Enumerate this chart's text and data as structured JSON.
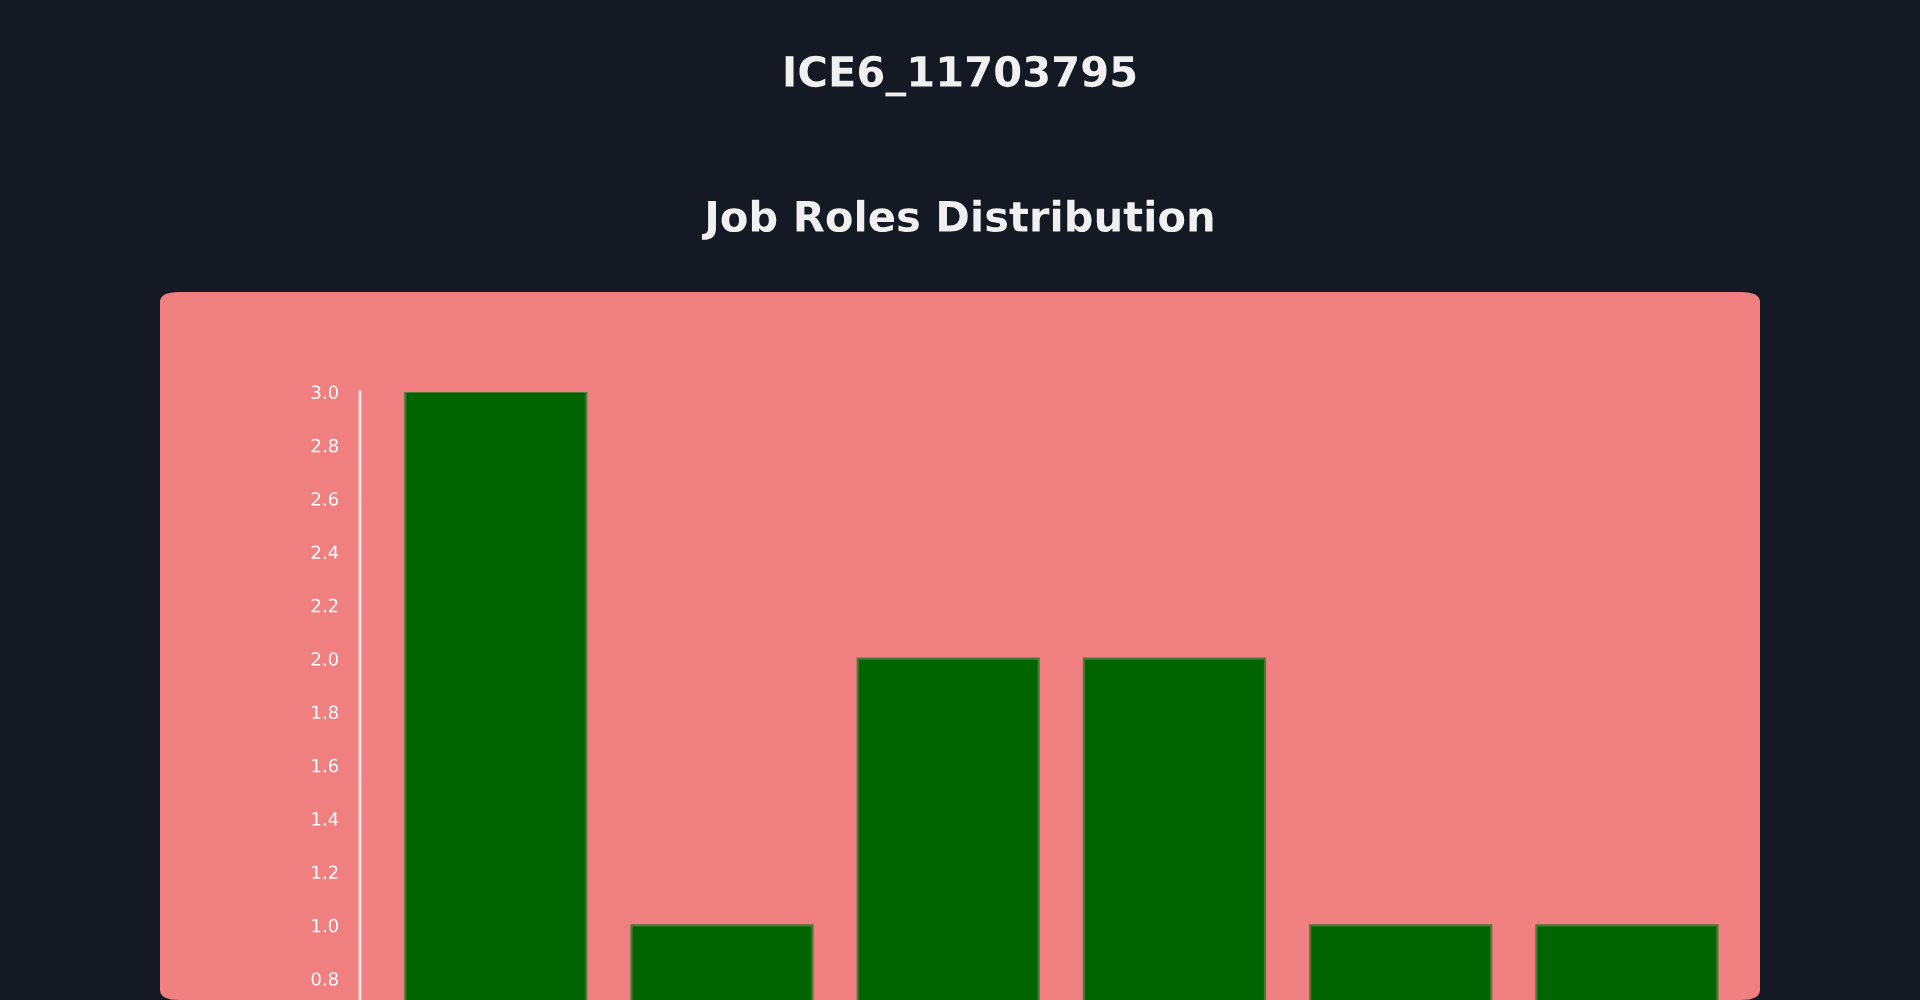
{
  "chart_data": {
    "type": "bar",
    "title": "ICE6_11703795",
    "subtitle": "Job Roles Distribution",
    "categories": [
      null,
      null,
      null,
      null,
      null,
      null
    ],
    "values": [
      3,
      1,
      2,
      2,
      1,
      1
    ],
    "color": "#006400",
    "ylim": [
      0.72,
      3.0
    ],
    "yticks": [
      {
        "value": 0.8,
        "label": "0.8"
      },
      {
        "value": 1.0,
        "label": "1.0"
      },
      {
        "value": 1.2,
        "label": "1.2"
      },
      {
        "value": 1.4,
        "label": "1.4"
      },
      {
        "value": 1.6,
        "label": "1.6"
      },
      {
        "value": 1.8,
        "label": "1.8"
      },
      {
        "value": 2.0,
        "label": "2.0"
      },
      {
        "value": 2.2,
        "label": "2.2"
      },
      {
        "value": 2.4,
        "label": "2.4"
      },
      {
        "value": 2.6,
        "label": "2.6"
      },
      {
        "value": 2.8,
        "label": "2.8"
      },
      {
        "value": 3.0,
        "label": "3.0"
      }
    ],
    "grid": false,
    "legend": false
  }
}
